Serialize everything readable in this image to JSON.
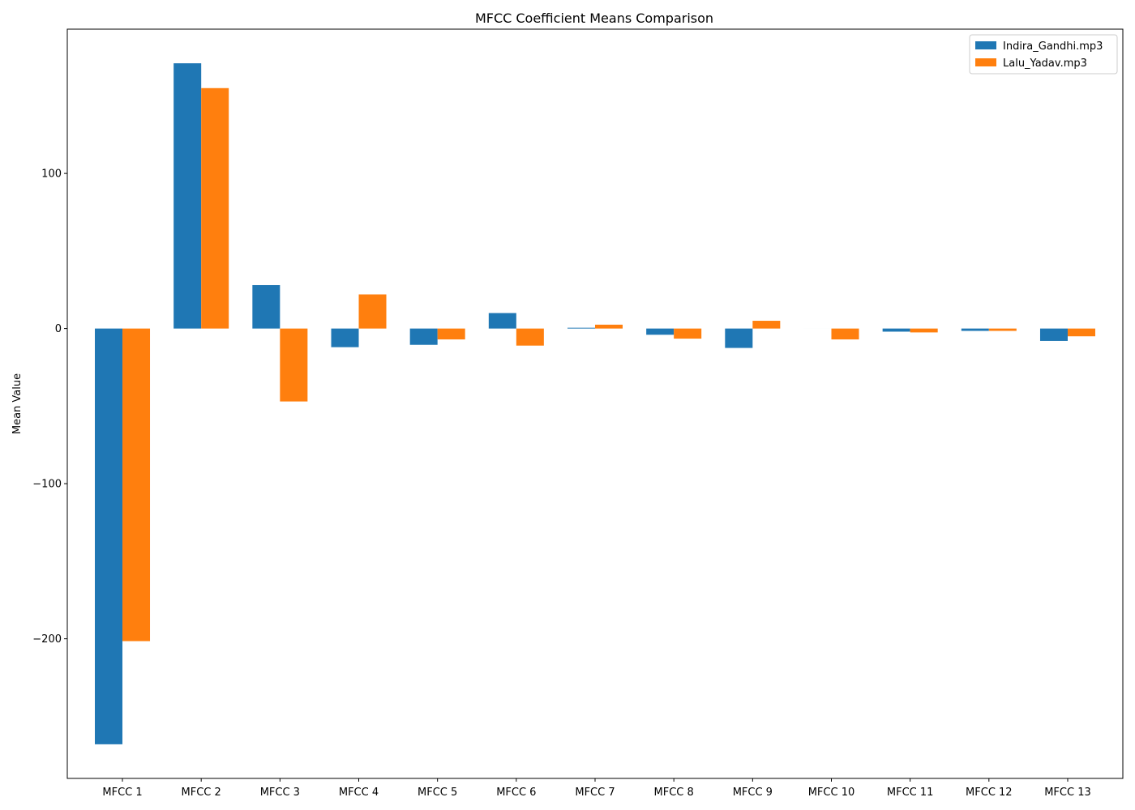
{
  "chart_data": {
    "type": "bar",
    "title": "MFCC Coefficient Means Comparison",
    "xlabel": "",
    "ylabel": "Mean Value",
    "categories": [
      "MFCC 1",
      "MFCC 2",
      "MFCC 3",
      "MFCC 4",
      "MFCC 5",
      "MFCC 6",
      "MFCC 7",
      "MFCC 8",
      "MFCC 9",
      "MFCC 10",
      "MFCC 11",
      "MFCC 12",
      "MFCC 13"
    ],
    "series": [
      {
        "name": "Indira_Gandhi.mp3",
        "color": "#1f77b4",
        "values": [
          -268,
          171,
          28,
          -12,
          -10.5,
          10,
          0.5,
          -4,
          -12.5,
          0,
          -2,
          -1.5,
          -8
        ]
      },
      {
        "name": "Lalu_Yadav.mp3",
        "color": "#ff7f0e",
        "values": [
          -201.5,
          155,
          -47,
          22,
          -7,
          -11,
          2.5,
          -6.5,
          5,
          -7,
          -2.5,
          -1.5,
          -5
        ]
      }
    ],
    "ylim": [
      -290,
      193
    ],
    "yticks": [
      -200,
      -100,
      0,
      100
    ],
    "ytick_labels": [
      "−200",
      "−100",
      "0",
      "100"
    ],
    "legend": "top-right",
    "grid": false
  }
}
